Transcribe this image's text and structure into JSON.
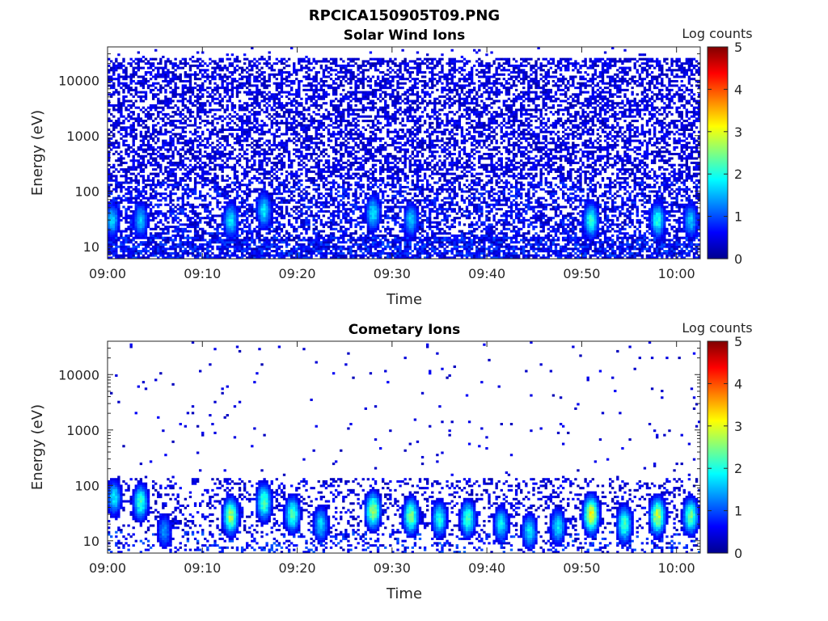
{
  "figure_title": "RPCICA150905T09.PNG",
  "colorbar_colors": [
    "#00008f",
    "#0000ff",
    "#0080ff",
    "#00ffff",
    "#80ff80",
    "#ffff00",
    "#ff8000",
    "#ff0000",
    "#800000"
  ],
  "chart_data": [
    {
      "type": "heatmap",
      "title": "Solar Wind Ions",
      "xlabel": "Time",
      "ylabel": "Energy (eV)",
      "x_tick_labels": [
        "09:00",
        "09:10",
        "09:20",
        "09:30",
        "09:40",
        "09:50",
        "10:00"
      ],
      "x_tick_minutes": [
        0,
        10,
        20,
        30,
        40,
        50,
        60
      ],
      "xlim_minutes": [
        0,
        62.5
      ],
      "y_scale": "log",
      "ylim": [
        6,
        40000
      ],
      "y_ticks": [
        10,
        100,
        1000,
        10000
      ],
      "y_tick_labels": [
        "10",
        "100",
        "1000",
        "10000"
      ],
      "colorbar": {
        "label": "Log counts",
        "range": [
          0,
          5
        ],
        "tick_labels": [
          "0",
          "1",
          "2",
          "3",
          "4",
          "5"
        ]
      },
      "hotspots": [
        {
          "minute": 0.5,
          "energy_ev": 30,
          "log_counts": 1.8
        },
        {
          "minute": 3.5,
          "energy_ev": 30,
          "log_counts": 1.8
        },
        {
          "minute": 13,
          "energy_ev": 30,
          "log_counts": 2.0
        },
        {
          "minute": 16.5,
          "energy_ev": 45,
          "log_counts": 2.0
        },
        {
          "minute": 28,
          "energy_ev": 40,
          "log_counts": 2.0
        },
        {
          "minute": 32,
          "energy_ev": 30,
          "log_counts": 1.8
        },
        {
          "minute": 51,
          "energy_ev": 30,
          "log_counts": 2.3
        },
        {
          "minute": 58,
          "energy_ev": 30,
          "log_counts": 2.2
        },
        {
          "minute": 61.5,
          "energy_ev": 30,
          "log_counts": 1.8
        }
      ]
    },
    {
      "type": "heatmap",
      "title": "Cometary Ions",
      "xlabel": "Time",
      "ylabel": "Energy (eV)",
      "x_tick_labels": [
        "09:00",
        "09:10",
        "09:20",
        "09:30",
        "09:40",
        "09:50",
        "10:00"
      ],
      "x_tick_minutes": [
        0,
        10,
        20,
        30,
        40,
        50,
        60
      ],
      "xlim_minutes": [
        0,
        62.5
      ],
      "y_scale": "log",
      "ylim": [
        6,
        40000
      ],
      "y_ticks": [
        10,
        100,
        1000,
        10000
      ],
      "y_tick_labels": [
        "10",
        "100",
        "1000",
        "10000"
      ],
      "colorbar": {
        "label": "Log counts",
        "range": [
          0,
          5
        ],
        "tick_labels": [
          "0",
          "1",
          "2",
          "3",
          "4",
          "5"
        ]
      },
      "hotspots": [
        {
          "minute": 0.7,
          "energy_ev": 60,
          "log_counts": 2.0
        },
        {
          "minute": 3.5,
          "energy_ev": 50,
          "log_counts": 2.4
        },
        {
          "minute": 6,
          "energy_ev": 15,
          "log_counts": 1.5
        },
        {
          "minute": 13,
          "energy_ev": 28,
          "log_counts": 3.0
        },
        {
          "minute": 16.5,
          "energy_ev": 50,
          "log_counts": 2.6
        },
        {
          "minute": 19.5,
          "energy_ev": 30,
          "log_counts": 2.5
        },
        {
          "minute": 22.5,
          "energy_ev": 20,
          "log_counts": 1.9
        },
        {
          "minute": 28,
          "energy_ev": 35,
          "log_counts": 3.0
        },
        {
          "minute": 32,
          "energy_ev": 28,
          "log_counts": 2.8
        },
        {
          "minute": 35,
          "energy_ev": 25,
          "log_counts": 2.2
        },
        {
          "minute": 38,
          "energy_ev": 25,
          "log_counts": 2.5
        },
        {
          "minute": 41.5,
          "energy_ev": 20,
          "log_counts": 2.0
        },
        {
          "minute": 44.5,
          "energy_ev": 15,
          "log_counts": 2.0
        },
        {
          "minute": 47.5,
          "energy_ev": 18,
          "log_counts": 2.0
        },
        {
          "minute": 51,
          "energy_ev": 30,
          "log_counts": 3.5
        },
        {
          "minute": 54.5,
          "energy_ev": 20,
          "log_counts": 2.5
        },
        {
          "minute": 58,
          "energy_ev": 28,
          "log_counts": 3.2
        },
        {
          "minute": 61.5,
          "energy_ev": 28,
          "log_counts": 2.7
        }
      ]
    }
  ]
}
